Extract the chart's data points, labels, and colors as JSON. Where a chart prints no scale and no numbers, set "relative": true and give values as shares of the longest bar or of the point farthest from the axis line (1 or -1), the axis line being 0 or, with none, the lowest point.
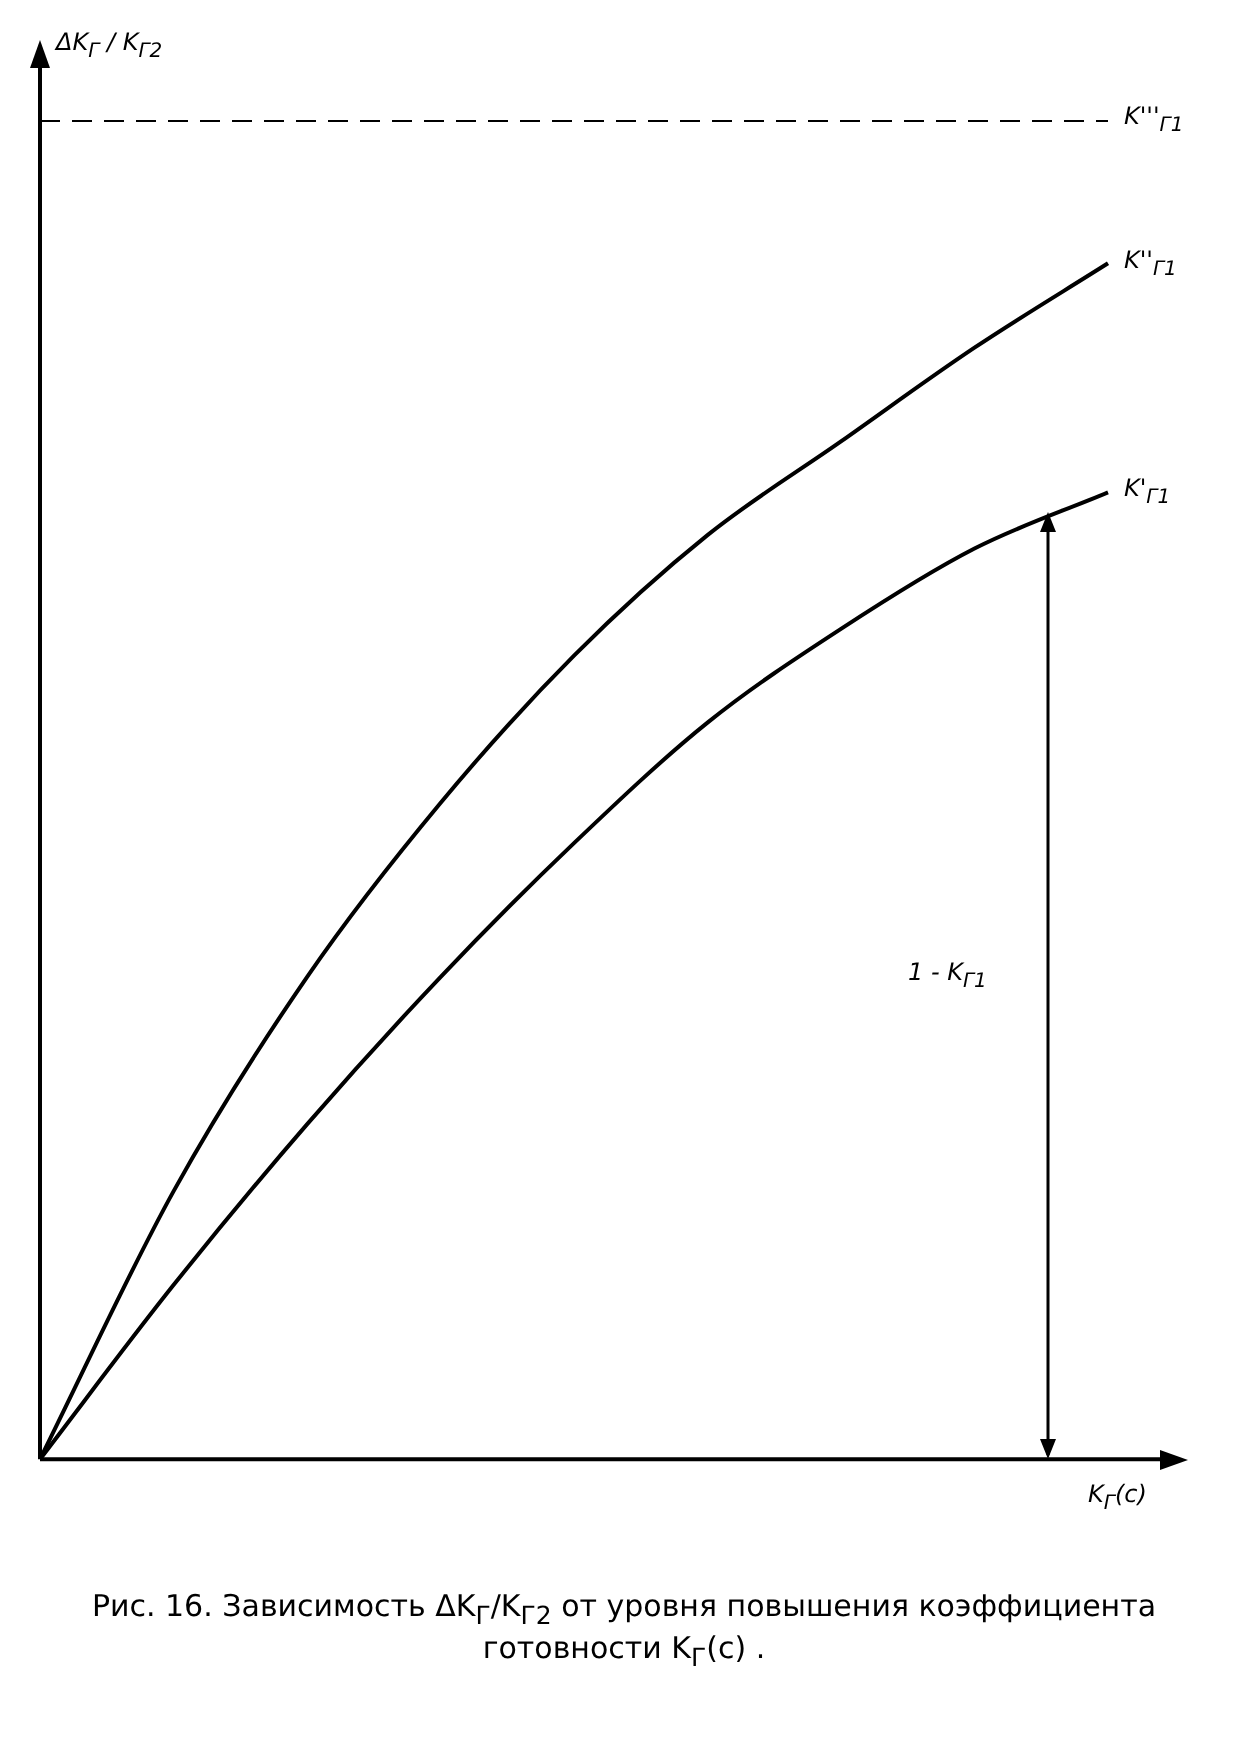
{
  "chart_data": {
    "type": "line",
    "relative": true,
    "xlabel": "K$_{Г}$(c)",
    "ylabel": "ΔK$_{Г}$ / K$_{Г2}$",
    "categories": [
      null,
      null,
      null,
      null,
      null,
      null,
      null,
      null,
      null
    ],
    "series": [
      {
        "name": "K'$_{Г1}$",
        "color": "#000000",
        "values": [
          0,
          0.13,
          0.25,
          0.36,
          0.46,
          0.55,
          0.62,
          0.68,
          0.722
        ]
      },
      {
        "name": "K''$_{Г1}$",
        "color": "#000000",
        "values": [
          0,
          0.2,
          0.36,
          0.49,
          0.6,
          0.69,
          0.76,
          0.83,
          0.893
        ]
      },
      {
        "name": "K'''$_{Г1}$",
        "color": "#000000",
        "line_style": "dashed",
        "values": [
          1,
          1,
          1,
          1,
          1,
          1,
          1,
          1,
          1
        ]
      }
    ],
    "annotations": [
      "1 - K$_{Г1}$",
      "Рис. 16. Зависимость ΔK$_{Г}$/K$_{Г2}$ от уровня повышения коэффициента готовности K$_{Г}$(c) ."
    ],
    "grid": false,
    "legend": "right",
    "marker": "none"
  }
}
